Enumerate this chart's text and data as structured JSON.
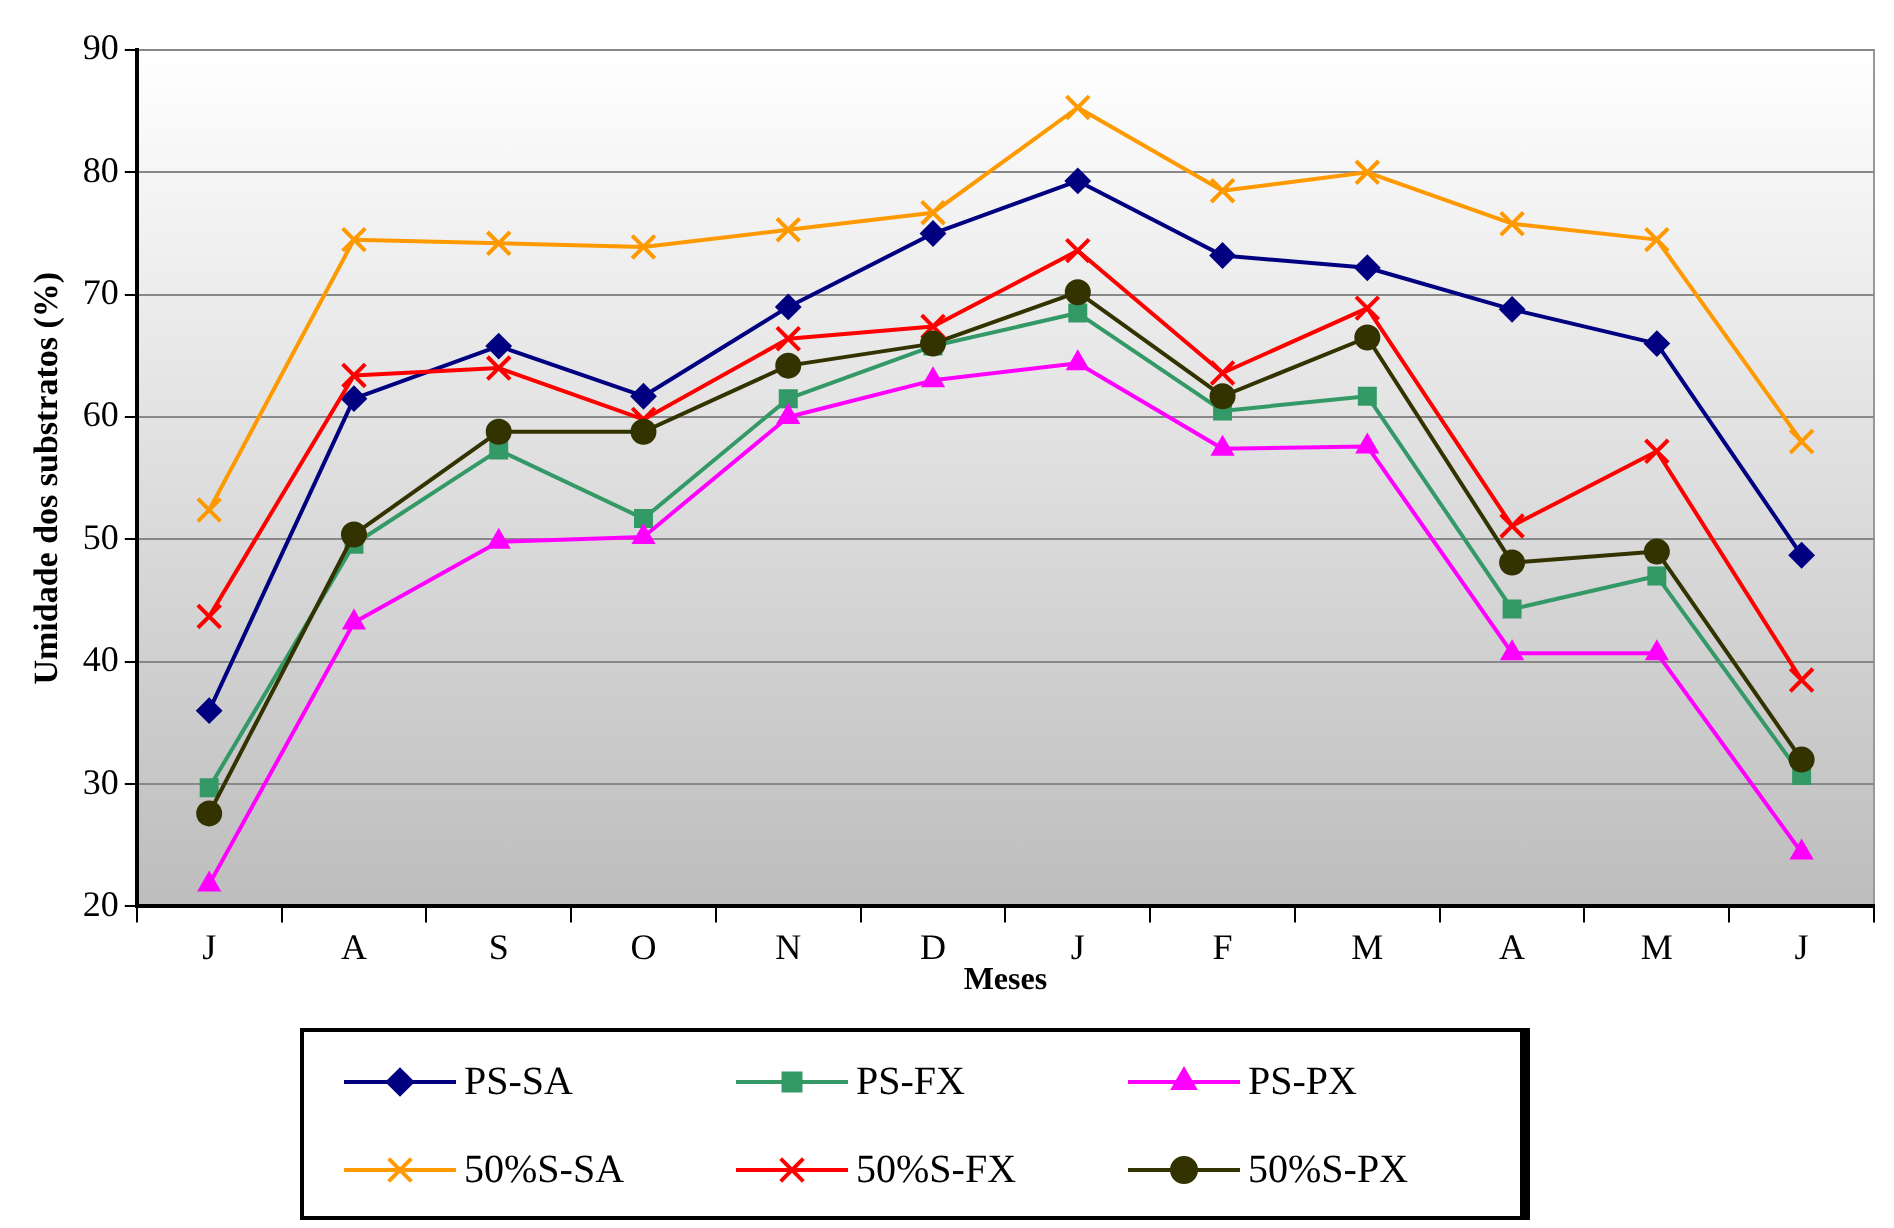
{
  "chart_data": {
    "type": "line",
    "xlabel": "Meses",
    "ylabel": "Umidade dos substratos (%)",
    "categories": [
      "J",
      "A",
      "S",
      "O",
      "N",
      "D",
      "J",
      "F",
      "M",
      "A",
      "M",
      "J"
    ],
    "ylim": [
      20,
      90
    ],
    "yticks": [
      20,
      30,
      40,
      50,
      60,
      70,
      80,
      90
    ],
    "grid": "y",
    "legend": "bottom",
    "line_style": "solid",
    "series": [
      {
        "name": "PS-SA",
        "color": "#000080",
        "marker": "diamond",
        "values": [
          36,
          61.5,
          65.8,
          61.7,
          69,
          75,
          79.3,
          73.2,
          72.2,
          68.8,
          66,
          48.7
        ]
      },
      {
        "name": "PS-FX",
        "color": "#339966",
        "marker": "square",
        "values": [
          29.7,
          49.6,
          57.3,
          51.7,
          61.5,
          65.8,
          68.5,
          60.5,
          61.7,
          44.3,
          47,
          30.7
        ]
      },
      {
        "name": "PS-PX",
        "color": "#ff00ff",
        "marker": "triangle",
        "values": [
          21.8,
          43.2,
          49.8,
          50.2,
          60,
          63,
          64.4,
          57.4,
          57.6,
          40.7,
          40.7,
          24.4
        ]
      },
      {
        "name": "50%S-SA",
        "color": "#ff9900",
        "marker": "cross",
        "values": [
          52.4,
          74.5,
          74.2,
          73.9,
          75.3,
          76.7,
          85.3,
          78.5,
          80,
          75.8,
          74.5,
          58
        ]
      },
      {
        "name": "50%S-FX",
        "color": "#ff0000",
        "marker": "cross",
        "values": [
          43.7,
          63.4,
          64,
          59.8,
          66.4,
          67.4,
          73.6,
          63.6,
          68.9,
          51.1,
          57.2,
          38.5
        ]
      },
      {
        "name": "50%S-PX",
        "color": "#333300",
        "marker": "circle",
        "values": [
          27.6,
          50.4,
          58.8,
          58.8,
          64.2,
          66,
          70.2,
          61.7,
          66.5,
          48.1,
          49,
          32
        ]
      }
    ]
  }
}
